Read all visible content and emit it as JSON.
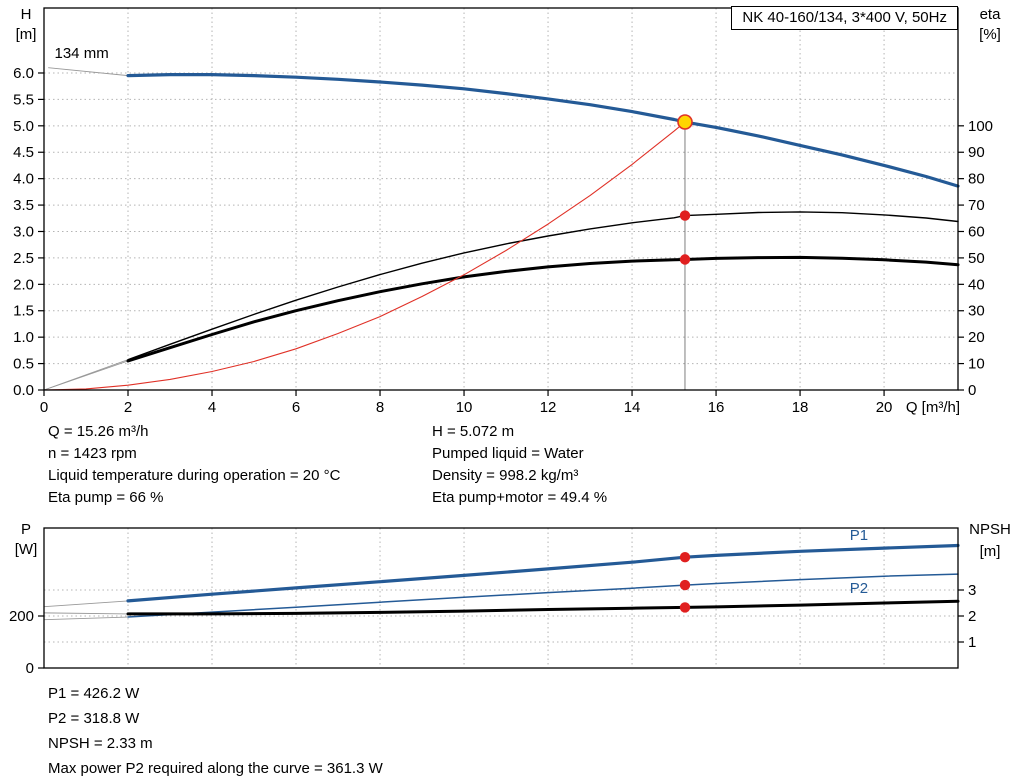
{
  "title_box": "NK 40-160/134, 3*400 V, 50Hz",
  "colors": {
    "curve_blue": "#245a96",
    "curve_black": "#000000",
    "system_red": "#e03127",
    "dot_red": "#e01f1f",
    "duty_fill": "#ffd500",
    "duty_ring": "#e03127",
    "grid": "#b4b4b4",
    "leader": "#999999",
    "duty_line": "#7e7e7e"
  },
  "chart_data": [
    {
      "id": "qh-eta-chart",
      "type": "line",
      "title": "NK 40-160/134, 3*400 V, 50Hz",
      "x_axis": {
        "label": "Q [m³/h]",
        "min": 0,
        "max": 21.76,
        "ticks": [
          {
            "v": 0,
            "label": "0"
          },
          {
            "v": 2,
            "label": "2"
          },
          {
            "v": 4,
            "label": "4"
          },
          {
            "v": 6,
            "label": "6"
          },
          {
            "v": 8,
            "label": "8"
          },
          {
            "v": 10,
            "label": "10"
          },
          {
            "v": 12,
            "label": "12"
          },
          {
            "v": 14,
            "label": "14"
          },
          {
            "v": 16,
            "label": "16"
          },
          {
            "v": 18,
            "label": "18"
          },
          {
            "v": 20,
            "label": "20"
          }
        ],
        "gridlines": [
          2,
          4,
          6,
          8,
          10,
          12,
          14,
          16,
          18,
          20
        ]
      },
      "left_axis": {
        "symbol": "H",
        "unit": "[m]",
        "min": 0,
        "max": 7.23,
        "ticks": [
          {
            "v": 0,
            "label": "0.0"
          },
          {
            "v": 0.5,
            "label": "0.5"
          },
          {
            "v": 1,
            "label": "1.0"
          },
          {
            "v": 1.5,
            "label": "1.5"
          },
          {
            "v": 2,
            "label": "2.0"
          },
          {
            "v": 2.5,
            "label": "2.5"
          },
          {
            "v": 3,
            "label": "3.0"
          },
          {
            "v": 3.5,
            "label": "3.5"
          },
          {
            "v": 4,
            "label": "4.0"
          },
          {
            "v": 4.5,
            "label": "4.5"
          },
          {
            "v": 5,
            "label": "5.0"
          },
          {
            "v": 5.5,
            "label": "5.5"
          },
          {
            "v": 6,
            "label": "6.0"
          }
        ]
      },
      "right_axis": {
        "symbol": "eta",
        "unit": "[%]",
        "factor": 0.05,
        "ticks": [
          {
            "v": 0,
            "label": "0"
          },
          {
            "v": 10,
            "label": "10"
          },
          {
            "v": 20,
            "label": "20"
          },
          {
            "v": 30,
            "label": "30"
          },
          {
            "v": 40,
            "label": "40"
          },
          {
            "v": 50,
            "label": "50"
          },
          {
            "v": 60,
            "label": "60"
          },
          {
            "v": 70,
            "label": "70"
          },
          {
            "v": 80,
            "label": "80"
          },
          {
            "v": 90,
            "label": "90"
          },
          {
            "v": 100,
            "label": "100"
          }
        ]
      },
      "h_gridlines": [
        0.5,
        1,
        1.5,
        2,
        2.5,
        3,
        3.5,
        4,
        4.5,
        5,
        5.5,
        6
      ],
      "annotations": [
        {
          "text": "134 mm",
          "q": 0.25,
          "v": 6.28
        }
      ],
      "leader_lines": [
        [
          [
            0.1,
            6.1
          ],
          [
            2,
            5.95
          ]
        ],
        [
          [
            0,
            0
          ],
          [
            2,
            0.575
          ]
        ],
        [
          [
            0,
            0
          ],
          [
            2,
            0.55
          ]
        ]
      ],
      "series": [
        {
          "name": "head-curve",
          "color": "#245a96",
          "width": 3.2,
          "scale": "left",
          "points": [
            [
              2,
              5.95
            ],
            [
              3,
              5.97
            ],
            [
              4,
              5.97
            ],
            [
              5,
              5.95
            ],
            [
              6,
              5.92
            ],
            [
              7,
              5.88
            ],
            [
              8,
              5.83
            ],
            [
              9,
              5.77
            ],
            [
              10,
              5.7
            ],
            [
              11,
              5.61
            ],
            [
              12,
              5.51
            ],
            [
              13,
              5.4
            ],
            [
              14,
              5.27
            ],
            [
              15,
              5.12
            ],
            [
              15.26,
              5.07
            ],
            [
              16,
              4.97
            ],
            [
              17,
              4.81
            ],
            [
              18,
              4.63
            ],
            [
              19,
              4.45
            ],
            [
              20,
              4.25
            ],
            [
              21,
              4.04
            ],
            [
              21.76,
              3.86
            ]
          ]
        },
        {
          "name": "eta-pump-curve",
          "color": "#000000",
          "width": 1.4,
          "scale": "right",
          "points": [
            [
              2,
              11.5
            ],
            [
              3,
              17.3
            ],
            [
              4,
              23
            ],
            [
              5,
              28.6
            ],
            [
              6,
              34
            ],
            [
              7,
              39
            ],
            [
              8,
              43.7
            ],
            [
              9,
              48
            ],
            [
              10,
              51.9
            ],
            [
              11,
              55.3
            ],
            [
              12,
              58.3
            ],
            [
              13,
              61
            ],
            [
              14,
              63.3
            ],
            [
              15,
              65.2
            ],
            [
              15.26,
              66
            ],
            [
              16,
              66.5
            ],
            [
              17,
              67.2
            ],
            [
              18,
              67.4
            ],
            [
              19,
              67.1
            ],
            [
              20,
              66.3
            ],
            [
              21,
              65.1
            ],
            [
              21.76,
              63.8
            ]
          ]
        },
        {
          "name": "eta-pump-motor-curve",
          "color": "#000000",
          "width": 3,
          "scale": "right",
          "points": [
            [
              2,
              11
            ],
            [
              3,
              16
            ],
            [
              4,
              21
            ],
            [
              5,
              25.8
            ],
            [
              6,
              30
            ],
            [
              7,
              33.8
            ],
            [
              8,
              37.2
            ],
            [
              9,
              40.2
            ],
            [
              10,
              42.8
            ],
            [
              11,
              44.9
            ],
            [
              12,
              46.6
            ],
            [
              13,
              47.9
            ],
            [
              14,
              48.8
            ],
            [
              15,
              49.3
            ],
            [
              15.26,
              49.4
            ],
            [
              16,
              49.8
            ],
            [
              17,
              50.1
            ],
            [
              18,
              50.2
            ],
            [
              19,
              49.9
            ],
            [
              20,
              49.3
            ],
            [
              21,
              48.4
            ],
            [
              21.76,
              47.4
            ]
          ]
        },
        {
          "name": "system-curve",
          "color": "#e03127",
          "width": 1.1,
          "scale": "left",
          "points": [
            [
              0,
              0
            ],
            [
              1,
              0.02
            ],
            [
              2,
              0.09
            ],
            [
              3,
              0.2
            ],
            [
              4,
              0.35
            ],
            [
              5,
              0.54
            ],
            [
              6,
              0.78
            ],
            [
              7,
              1.07
            ],
            [
              8,
              1.39
            ],
            [
              9,
              1.77
            ],
            [
              10,
              2.18
            ],
            [
              11,
              2.64
            ],
            [
              12,
              3.14
            ],
            [
              13,
              3.68
            ],
            [
              14,
              4.27
            ],
            [
              15,
              4.9
            ],
            [
              15.26,
              5.072
            ]
          ]
        }
      ],
      "duty": {
        "q": 15.26,
        "vline": true,
        "points": [
          {
            "v": 5.072,
            "scale": "left",
            "style": "duty"
          },
          {
            "v": 66,
            "scale": "right",
            "style": "dot"
          },
          {
            "v": 49.4,
            "scale": "right",
            "style": "dot"
          }
        ]
      }
    },
    {
      "id": "power-npsh-chart",
      "type": "line",
      "x_axis": {
        "label": "",
        "min": 0,
        "max": 21.76,
        "ticks": [],
        "gridlines": [
          2,
          4,
          6,
          8,
          10,
          12,
          14,
          16,
          18,
          20
        ]
      },
      "left_axis": {
        "symbol": "P",
        "unit": "[W]",
        "min": 0,
        "max": 538.5,
        "ticks": [
          {
            "v": 0,
            "label": "0"
          },
          {
            "v": 200,
            "label": "200"
          }
        ]
      },
      "right_axis": {
        "symbol": "NPSH",
        "unit": "[m]",
        "factor": 100,
        "ticks": [
          {
            "v": 1,
            "label": "1"
          },
          {
            "v": 2,
            "label": "2"
          },
          {
            "v": 3,
            "label": "3"
          }
        ]
      },
      "h_gridlines": [
        100,
        200,
        300
      ],
      "annotations": [],
      "leader_lines": [
        [
          [
            0,
            236
          ],
          [
            2,
            258
          ]
        ],
        [
          [
            0,
            186
          ],
          [
            2,
            196
          ]
        ],
        [
          [
            0,
            212
          ],
          [
            2,
            208
          ]
        ]
      ],
      "series": [
        {
          "name": "p1-curve",
          "color": "#245a96",
          "width": 3.2,
          "scale": "left",
          "label": "P1",
          "label_q": 19.4,
          "label_dy": -9,
          "points": [
            [
              2,
              258
            ],
            [
              4,
              284
            ],
            [
              6,
              308
            ],
            [
              8,
              332
            ],
            [
              10,
              356
            ],
            [
              12,
              381
            ],
            [
              14,
              407
            ],
            [
              15.26,
              426.2
            ],
            [
              16,
              433
            ],
            [
              18,
              449
            ],
            [
              20,
              461
            ],
            [
              21.76,
              471
            ]
          ]
        },
        {
          "name": "p2-curve",
          "color": "#245a96",
          "width": 1.5,
          "scale": "left",
          "label": "P2",
          "label_q": 19.4,
          "label_dy": 16,
          "points": [
            [
              2,
              196
            ],
            [
              4,
              215
            ],
            [
              6,
              234
            ],
            [
              8,
              253
            ],
            [
              10,
              272
            ],
            [
              12,
              290
            ],
            [
              14,
              307
            ],
            [
              15.26,
              318.8
            ],
            [
              16,
              325
            ],
            [
              18,
              340
            ],
            [
              20,
              353
            ],
            [
              21.76,
              361.3
            ]
          ]
        },
        {
          "name": "npsh-curve",
          "color": "#000000",
          "width": 3,
          "scale": "right",
          "points": [
            [
              2,
              2.08
            ],
            [
              4,
              2.08
            ],
            [
              6,
              2.1
            ],
            [
              8,
              2.14
            ],
            [
              10,
              2.19
            ],
            [
              12,
              2.25
            ],
            [
              14,
              2.3
            ],
            [
              15.26,
              2.33
            ],
            [
              16,
              2.35
            ],
            [
              18,
              2.42
            ],
            [
              20,
              2.5
            ],
            [
              21.76,
              2.57
            ]
          ]
        }
      ],
      "duty": {
        "q": 15.26,
        "vline": false,
        "points": [
          {
            "v": 426.2,
            "scale": "left",
            "style": "dot"
          },
          {
            "v": 318.8,
            "scale": "left",
            "style": "dot"
          },
          {
            "v": 2.33,
            "scale": "right",
            "style": "dot"
          }
        ]
      }
    }
  ],
  "operating_point_text": {
    "left": [
      "Q = 15.26 m³/h",
      "n = 1423 rpm",
      "Liquid temperature during operation = 20 °C",
      "Eta pump = 66 %"
    ],
    "right": [
      "H = 5.072 m",
      "Pumped liquid = Water",
      "Density = 998.2 kg/m³",
      "Eta pump+motor = 49.4 %"
    ]
  },
  "result_text": [
    "P1 = 426.2 W",
    "P2 = 318.8 W",
    "NPSH = 2.33 m",
    "Max power P2 required along the curve = 361.3 W"
  ]
}
